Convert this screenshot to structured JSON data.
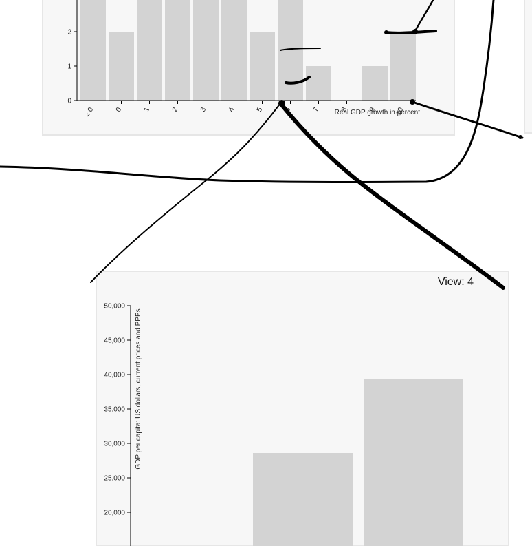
{
  "views": {
    "bottom_label": "View: 4"
  },
  "chart_data": [
    {
      "type": "bar",
      "categories": [
        "< 0",
        "0",
        "1",
        "2",
        "3",
        "4",
        "5",
        "6",
        "7",
        "8",
        "9",
        "10"
      ],
      "values": [
        3,
        2,
        3,
        3,
        3,
        3,
        2,
        3,
        1,
        0,
        1,
        2
      ],
      "xlabel": "Real GDP growth in percent",
      "ylabel": "",
      "yticks": [
        0,
        1,
        2
      ],
      "ylim": [
        0,
        3
      ],
      "grid": false
    },
    {
      "type": "bar",
      "categories": [
        "",
        ""
      ],
      "values": [
        28600,
        39300
      ],
      "xlabel": "",
      "ylabel": "GDP per capita: US dollars, current prices and PPPs",
      "yticks": [
        20000,
        25000,
        30000,
        35000,
        40000,
        45000,
        50000
      ],
      "ytick_labels": [
        "20,000",
        "25,000",
        "30,000",
        "35,000",
        "40,000",
        "45,000",
        "50,000"
      ],
      "ylim": [
        15000,
        50000
      ],
      "grid": false
    }
  ],
  "colors": {
    "bar": "#d3d3d3",
    "panel_bg": "#f7f7f7",
    "panel_border": "#e6e6e6",
    "ink": "#000000"
  }
}
